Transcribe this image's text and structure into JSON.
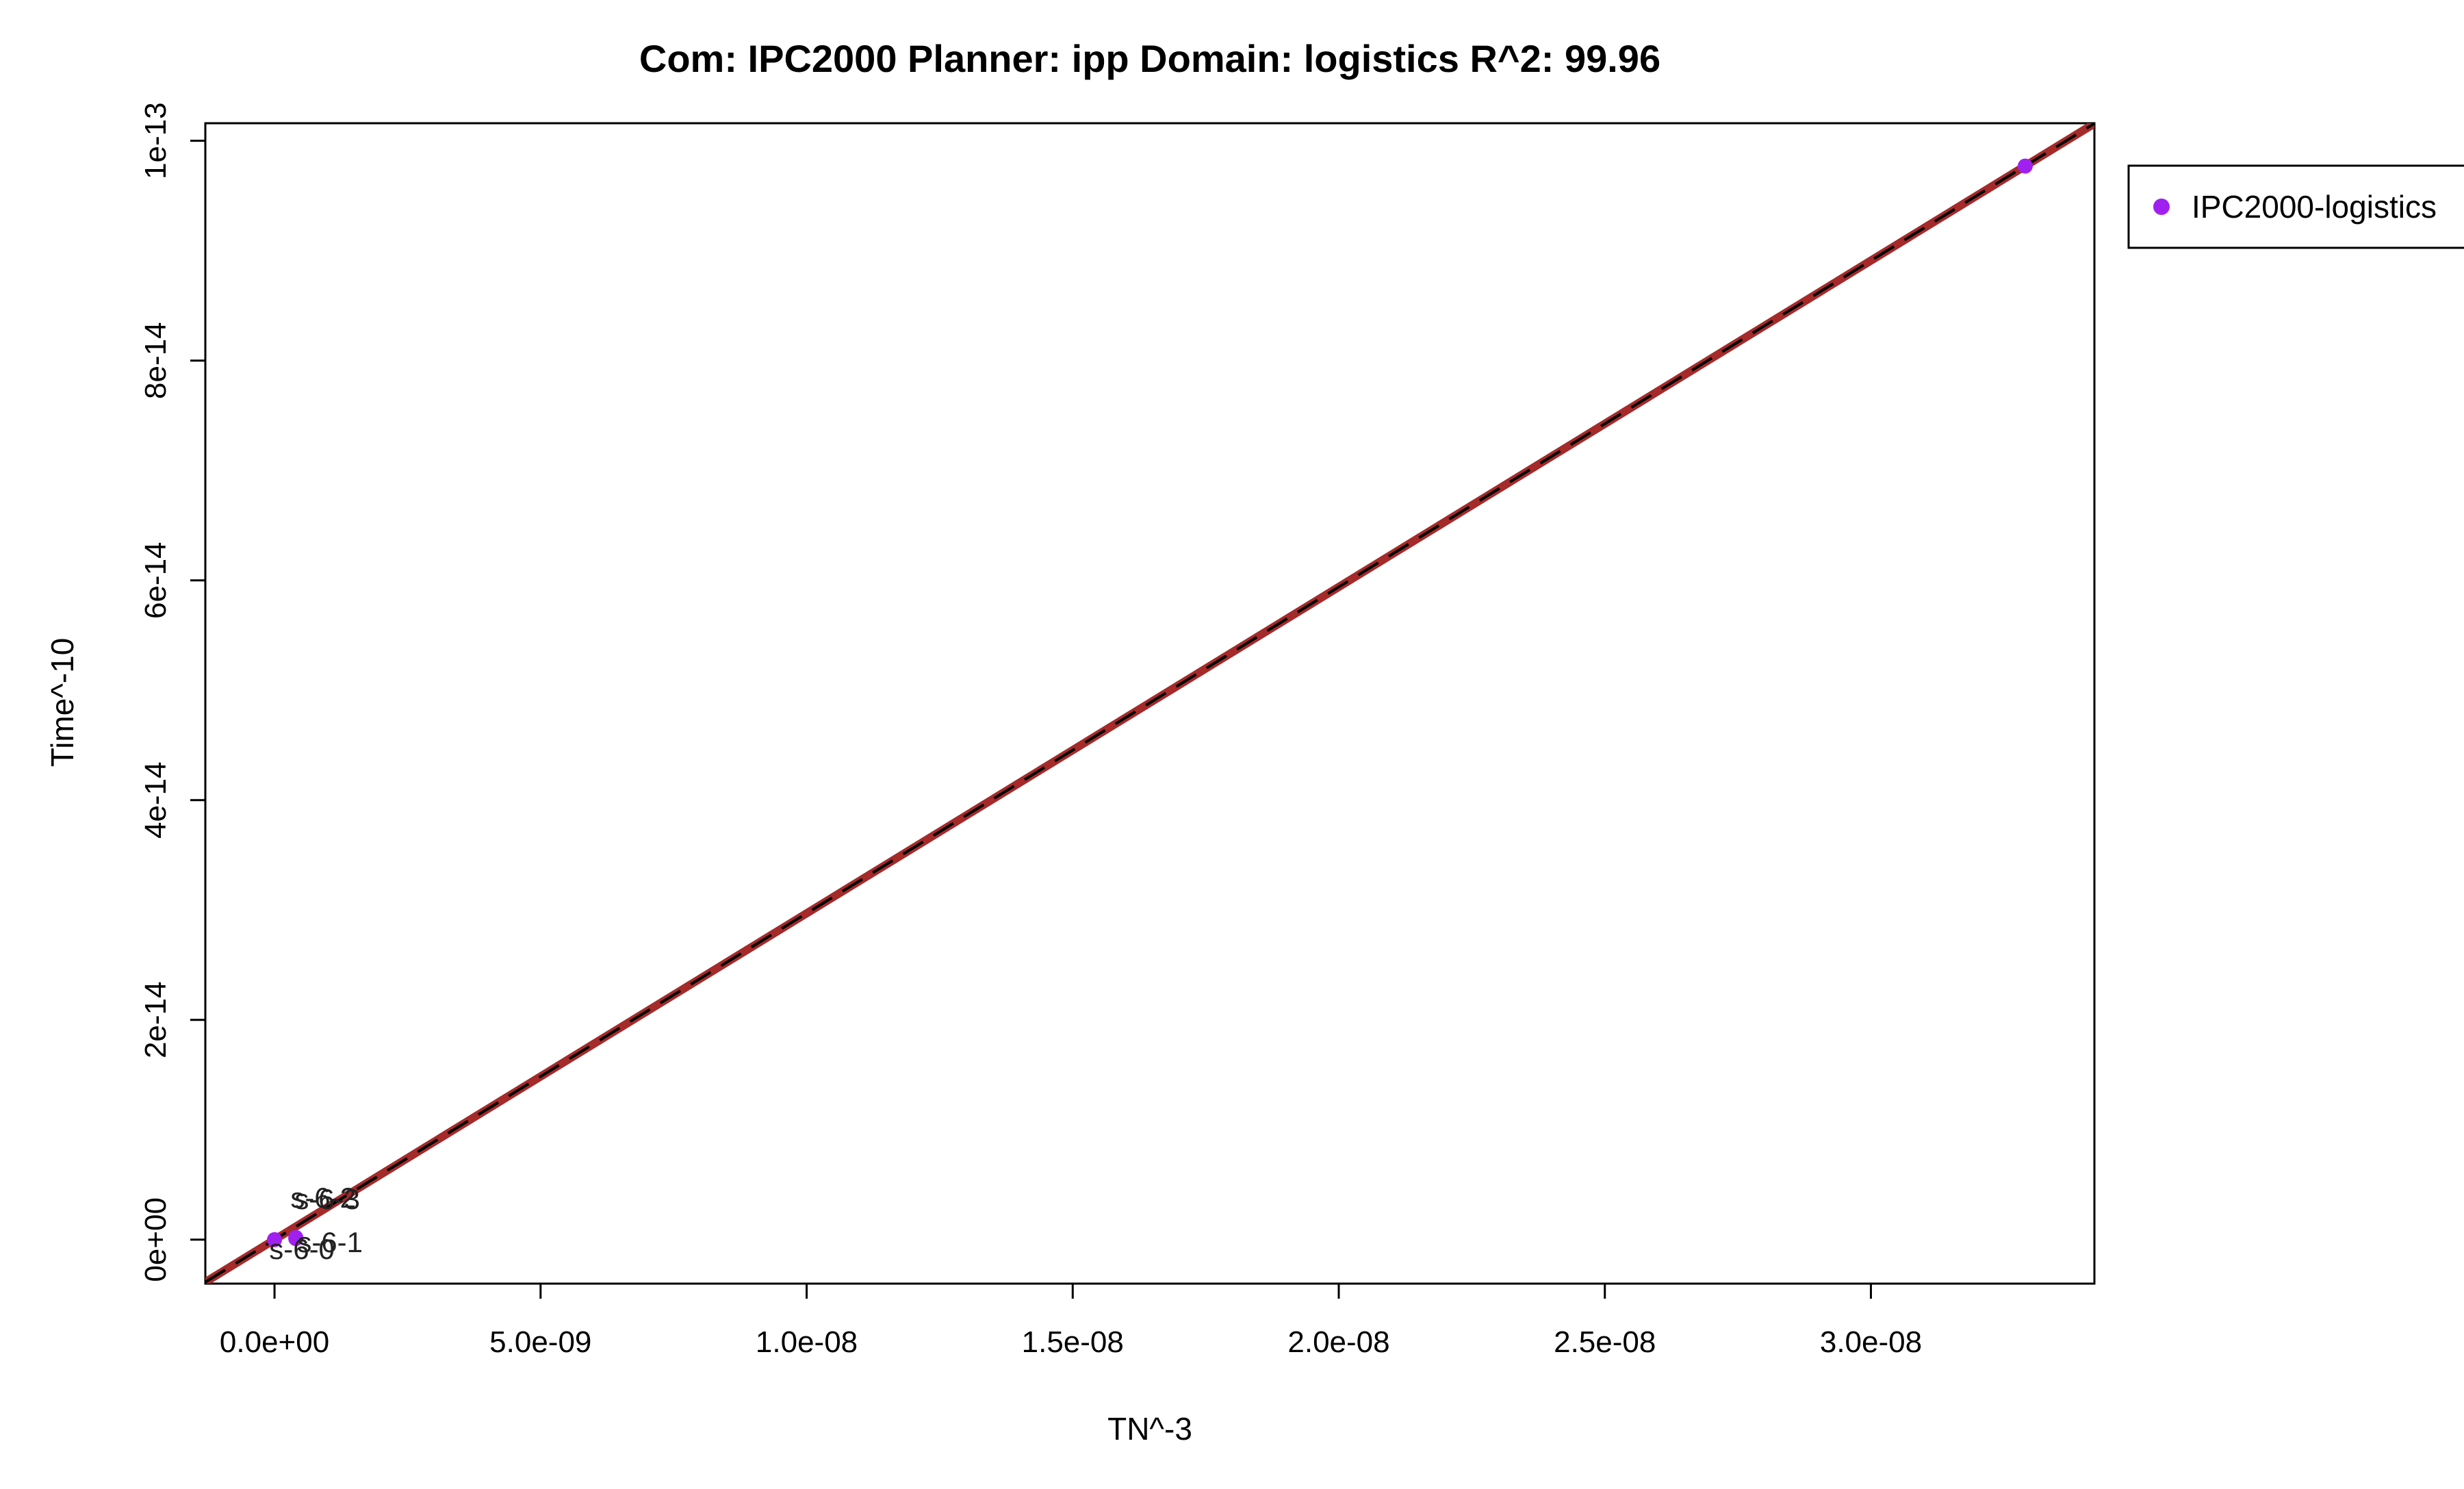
{
  "chart_data": {
    "type": "scatter",
    "title": "Com: IPC2000 Planner: ipp Domain: logistics R^2: 99.96",
    "xlabel": "TN^-3",
    "ylabel": "Time^-10",
    "xlim": [
      -1.3e-09,
      3.42e-08
    ],
    "ylim": [
      -4e-15,
      1.016e-13
    ],
    "x_ticks": [
      0,
      5e-09,
      1e-08,
      1.5e-08,
      2e-08,
      2.5e-08,
      3e-08
    ],
    "x_tick_labels": [
      "0.0e+00",
      "5.0e-09",
      "1.0e-08",
      "1.5e-08",
      "2.0e-08",
      "2.5e-08",
      "3.0e-08"
    ],
    "y_ticks": [
      0,
      2e-14,
      4e-14,
      6e-14,
      8e-14,
      1e-13
    ],
    "y_tick_labels": [
      "0e+00",
      "2e-14",
      "4e-14",
      "6e-14",
      "8e-14",
      "1e-13"
    ],
    "grid": false,
    "legend": {
      "placement": "top-right, outside plot",
      "entries": [
        "IPC2000-logistics"
      ]
    },
    "series": [
      {
        "name": "IPC2000-logistics",
        "color": "#a020f0",
        "points": [
          {
            "x": 0,
            "y": 0
          },
          {
            "x": 4e-10,
            "y": 1e-16
          },
          {
            "x": 4e-10,
            "y": 2e-16
          },
          {
            "x": 3.29e-08,
            "y": 9.77e-14
          }
        ]
      }
    ],
    "point_labels": [
      {
        "text": "s-6-0",
        "x": 0,
        "y": 0
      },
      {
        "text": "s-6-1",
        "x": 4e-10,
        "y": 1e-16
      },
      {
        "text": "s-6-2",
        "x": 4e-10,
        "y": 1.8e-15
      },
      {
        "text": "s-6-3",
        "x": 4e-10,
        "y": 1.8e-15
      }
    ],
    "fit_lines": [
      {
        "style": "solid",
        "color": "#a52a2a",
        "slope": 2.97e-06,
        "intercept": 0
      },
      {
        "style": "dashed",
        "color": "#000000",
        "slope": 2.97e-06,
        "intercept": 0
      }
    ]
  }
}
